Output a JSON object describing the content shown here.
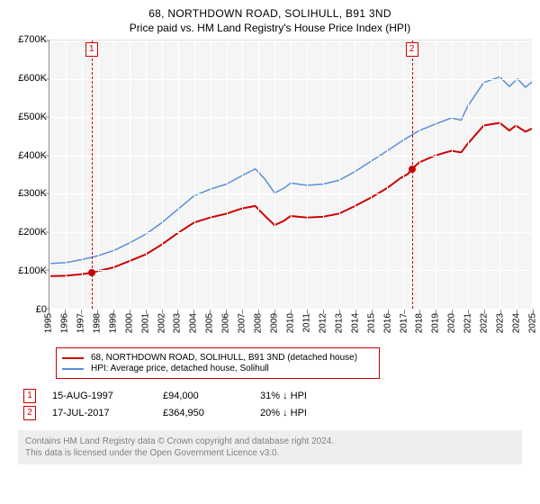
{
  "titles": {
    "main": "68, NORTHDOWN ROAD, SOLIHULL, B91 3ND",
    "sub": "Price paid vs. HM Land Registry's House Price Index (HPI)"
  },
  "chart": {
    "type": "line",
    "background": "#f5f5f5",
    "grid_color": "#ffffff",
    "axis_color": "#888888",
    "x": {
      "min": 1995,
      "max": 2025,
      "ticks": [
        1995,
        1996,
        1997,
        1998,
        1999,
        2000,
        2001,
        2002,
        2003,
        2004,
        2005,
        2006,
        2007,
        2008,
        2009,
        2010,
        2011,
        2012,
        2013,
        2014,
        2015,
        2016,
        2017,
        2018,
        2019,
        2020,
        2021,
        2022,
        2023,
        2024,
        2025
      ]
    },
    "y": {
      "min": 0,
      "max": 700000,
      "ticks": [
        0,
        100000,
        200000,
        300000,
        400000,
        500000,
        600000,
        700000
      ],
      "labels": [
        "£0",
        "£100K",
        "£200K",
        "£300K",
        "£400K",
        "£500K",
        "£600K",
        "£700K"
      ]
    },
    "series": [
      {
        "name": "68, NORTHDOWN ROAD, SOLIHULL, B91 3ND (detached house)",
        "color": "#cc0000",
        "width": 2,
        "data": [
          [
            1995.0,
            85000
          ],
          [
            1996.0,
            86000
          ],
          [
            1997.0,
            90000
          ],
          [
            1997.6,
            94000
          ],
          [
            1998.0,
            98000
          ],
          [
            1999.0,
            108000
          ],
          [
            2000.0,
            125000
          ],
          [
            2001.0,
            142000
          ],
          [
            2002.0,
            168000
          ],
          [
            2003.0,
            198000
          ],
          [
            2004.0,
            225000
          ],
          [
            2005.0,
            238000
          ],
          [
            2006.0,
            248000
          ],
          [
            2007.0,
            262000
          ],
          [
            2007.8,
            268000
          ],
          [
            2008.4,
            242000
          ],
          [
            2009.0,
            218000
          ],
          [
            2009.6,
            230000
          ],
          [
            2010.0,
            242000
          ],
          [
            2011.0,
            238000
          ],
          [
            2012.0,
            240000
          ],
          [
            2013.0,
            248000
          ],
          [
            2014.0,
            268000
          ],
          [
            2015.0,
            290000
          ],
          [
            2016.0,
            315000
          ],
          [
            2016.8,
            340000
          ],
          [
            2017.3,
            352000
          ],
          [
            2017.54,
            364950
          ],
          [
            2018.0,
            382000
          ],
          [
            2019.0,
            400000
          ],
          [
            2020.0,
            412000
          ],
          [
            2020.6,
            408000
          ],
          [
            2021.0,
            430000
          ],
          [
            2022.0,
            478000
          ],
          [
            2023.0,
            485000
          ],
          [
            2023.6,
            465000
          ],
          [
            2024.0,
            478000
          ],
          [
            2024.6,
            462000
          ],
          [
            2025.0,
            470000
          ]
        ]
      },
      {
        "name": "HPI: Average price, detached house, Solihull",
        "color": "#5b8fd6",
        "width": 1.5,
        "data": [
          [
            1995.0,
            118000
          ],
          [
            1996.0,
            120000
          ],
          [
            1997.0,
            128000
          ],
          [
            1998.0,
            138000
          ],
          [
            1999.0,
            152000
          ],
          [
            2000.0,
            172000
          ],
          [
            2001.0,
            195000
          ],
          [
            2002.0,
            225000
          ],
          [
            2003.0,
            260000
          ],
          [
            2004.0,
            295000
          ],
          [
            2005.0,
            312000
          ],
          [
            2006.0,
            325000
          ],
          [
            2007.0,
            348000
          ],
          [
            2007.8,
            365000
          ],
          [
            2008.4,
            338000
          ],
          [
            2009.0,
            302000
          ],
          [
            2009.6,
            315000
          ],
          [
            2010.0,
            328000
          ],
          [
            2011.0,
            322000
          ],
          [
            2012.0,
            325000
          ],
          [
            2013.0,
            335000
          ],
          [
            2014.0,
            358000
          ],
          [
            2015.0,
            385000
          ],
          [
            2016.0,
            412000
          ],
          [
            2017.0,
            440000
          ],
          [
            2018.0,
            465000
          ],
          [
            2019.0,
            482000
          ],
          [
            2020.0,
            498000
          ],
          [
            2020.6,
            492000
          ],
          [
            2021.0,
            528000
          ],
          [
            2022.0,
            590000
          ],
          [
            2023.0,
            605000
          ],
          [
            2023.6,
            580000
          ],
          [
            2024.1,
            600000
          ],
          [
            2024.6,
            578000
          ],
          [
            2025.0,
            592000
          ]
        ]
      }
    ],
    "markers": [
      {
        "n": "1",
        "year": 1997.62,
        "value": 94000,
        "color": "#cc0000"
      },
      {
        "n": "2",
        "year": 2017.54,
        "value": 364950,
        "color": "#cc0000"
      }
    ],
    "legend_border": "#cc0000"
  },
  "events": [
    {
      "n": "1",
      "date": "15-AUG-1997",
      "price": "£94,000",
      "diff": "31% ↓ HPI",
      "color": "#cc0000"
    },
    {
      "n": "2",
      "date": "17-JUL-2017",
      "price": "£364,950",
      "diff": "20% ↓ HPI",
      "color": "#cc0000"
    }
  ],
  "footer": {
    "line1": "Contains HM Land Registry data © Crown copyright and database right 2024.",
    "line2": "This data is licensed under the Open Government Licence v3.0.",
    "bg": "#eeeeee",
    "fg": "#808080"
  }
}
